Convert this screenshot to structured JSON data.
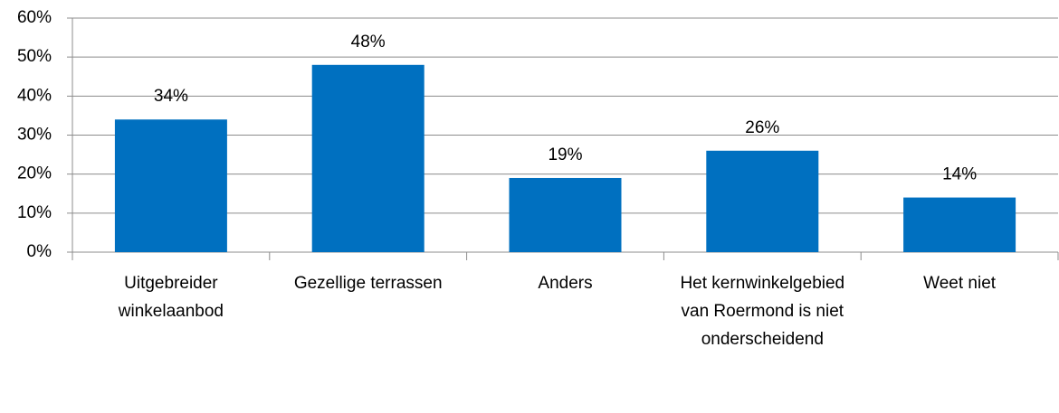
{
  "chart_data": {
    "type": "bar",
    "categories": [
      "Uitgebreider winkelaanbod",
      "Gezellige terrassen",
      "Anders",
      "Het kernwinkelgebied van Roermond is niet onderscheidend",
      "Weet niet"
    ],
    "values": [
      34,
      48,
      19,
      26,
      14
    ],
    "value_labels": [
      "34%",
      "48%",
      "19%",
      "26%",
      "14%"
    ],
    "color": "#0070c0",
    "ylim": [
      0,
      60
    ],
    "yticks": [
      {
        "value": 0,
        "label": "0%"
      },
      {
        "value": 10,
        "label": "10%"
      },
      {
        "value": 20,
        "label": "20%"
      },
      {
        "value": 30,
        "label": "30%"
      },
      {
        "value": 40,
        "label": "40%"
      },
      {
        "value": 50,
        "label": "50%"
      },
      {
        "value": 60,
        "label": "60%"
      }
    ],
    "grid": true
  }
}
